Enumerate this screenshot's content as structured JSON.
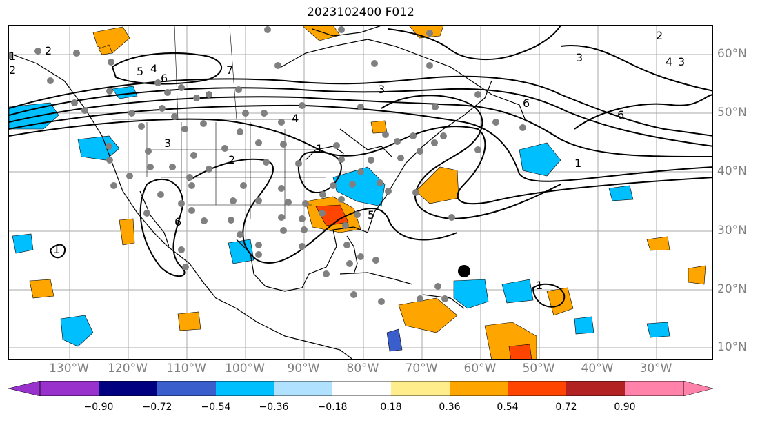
{
  "title": "2023102400 F012",
  "longitude_labels": [
    "130°W",
    "120°W",
    "110°W",
    "100°W",
    "90°W",
    "80°W",
    "70°W",
    "60°W",
    "50°W",
    "40°W",
    "30°W"
  ],
  "latitude_labels": [
    "60°N",
    "50°N",
    "40°N",
    "30°N",
    "20°N",
    "10°N"
  ],
  "contour_labels": [
    "2",
    "5",
    "4",
    "6",
    "7",
    "3",
    "2",
    "3",
    "4",
    "3",
    "6",
    "6",
    "6",
    "5",
    "1",
    "2",
    "3",
    "2",
    "1",
    "4",
    "1",
    "1",
    "1"
  ],
  "colorbar": {
    "ticks": [
      "−0.90",
      "−0.72",
      "−0.54",
      "−0.36",
      "−0.18",
      "0.18",
      "0.36",
      "0.54",
      "0.72",
      "0.90"
    ],
    "colors": [
      "#9932CC",
      "#000080",
      "#3A5FCD",
      "#00BFFF",
      "#B0E2FF",
      "#FFFFFF",
      "#FFEC8B",
      "#FFA500",
      "#FF4500",
      "#B22222",
      "#FF82AB"
    ],
    "extend": "both"
  },
  "legend_colors": {
    "positive": "#FFA500",
    "strong_positive": "#FF4500",
    "negative": "#00BFFF",
    "strong_negative": "#3A5FCD",
    "station_dot": "#808080",
    "contour": "#000000",
    "marker": "#000000"
  }
}
